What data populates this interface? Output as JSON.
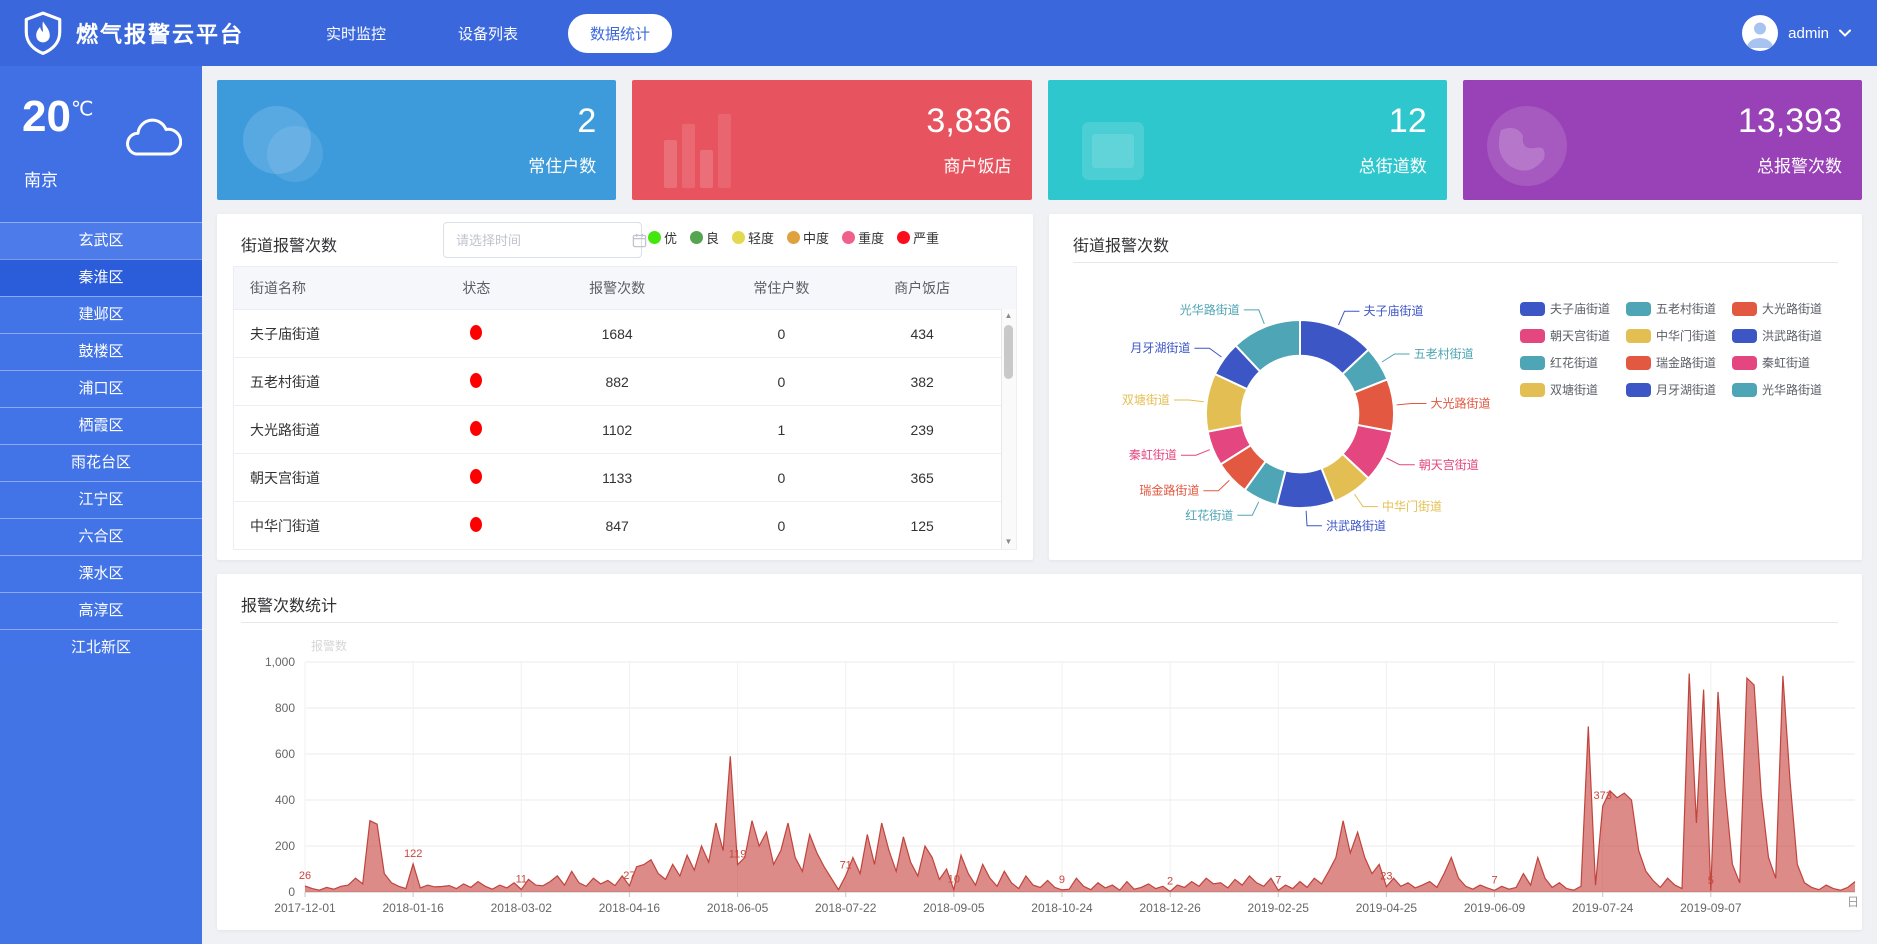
{
  "header": {
    "app_title": "燃气报警云平台",
    "nav_items": [
      {
        "label": "实时监控",
        "active": false
      },
      {
        "label": "设备列表",
        "active": false
      },
      {
        "label": "数据统计",
        "active": true
      }
    ],
    "user_name": "admin"
  },
  "sidebar": {
    "weather": {
      "temperature": "20",
      "unit": "℃",
      "city": "南京"
    },
    "districts": [
      "玄武区",
      "秦淮区",
      "建邺区",
      "鼓楼区",
      "浦口区",
      "栖霞区",
      "雨花台区",
      "江宁区",
      "六合区",
      "溧水区",
      "高淳区",
      "江北新区"
    ],
    "selected_district": "秦淮区"
  },
  "stat_cards": [
    {
      "value": "2",
      "label": "常住户数",
      "color": "#3d9bdc",
      "icon": "moon-icon"
    },
    {
      "value": "3,836",
      "label": "商户饭店",
      "color": "#e7545f",
      "icon": "bar-chart-icon"
    },
    {
      "value": "12",
      "label": "总街道数",
      "color": "#2ec7cd",
      "icon": "device-icon"
    },
    {
      "value": "13,393",
      "label": "总报警次数",
      "color": "#9941b6",
      "icon": "globe-icon"
    }
  ],
  "street_panel": {
    "title": "街道报警次数",
    "date_placeholder": "请选择时间",
    "severity_legend": [
      {
        "label": "优",
        "color": "#43e70e"
      },
      {
        "label": "良",
        "color": "#55a44f"
      },
      {
        "label": "轻度",
        "color": "#e3d94f"
      },
      {
        "label": "中度",
        "color": "#dfa23f"
      },
      {
        "label": "重度",
        "color": "#f0608b"
      },
      {
        "label": "严重",
        "color": "#fb0d1b"
      }
    ],
    "columns": [
      "街道名称",
      "状态",
      "报警次数",
      "常住户数",
      "商户饭店"
    ],
    "status_color": "#ff0000",
    "rows": [
      {
        "name": "夫子庙街道",
        "alarms": "1684",
        "households": "0",
        "merchants": "434"
      },
      {
        "name": "五老村街道",
        "alarms": "882",
        "households": "0",
        "merchants": "382"
      },
      {
        "name": "大光路街道",
        "alarms": "1102",
        "households": "1",
        "merchants": "239"
      },
      {
        "name": "朝天宫街道",
        "alarms": "1133",
        "households": "0",
        "merchants": "365"
      },
      {
        "name": "中华门街道",
        "alarms": "847",
        "households": "0",
        "merchants": "125"
      }
    ]
  },
  "donut_panel": {
    "title": "街道报警次数"
  },
  "trend_panel": {
    "title": "报警次数统计"
  },
  "chart_data": [
    {
      "id": "street-alarm-donut",
      "type": "pie",
      "title": "街道报警次数",
      "legend_position": "top-right",
      "inner_radius_ratio": 0.62,
      "segments": [
        {
          "name": "夫子庙街道",
          "value": 13,
          "color": "#3d56c6"
        },
        {
          "name": "五老村街道",
          "value": 6,
          "color": "#4ea5b5"
        },
        {
          "name": "大光路街道",
          "value": 9,
          "color": "#e25840"
        },
        {
          "name": "朝天宫街道",
          "value": 9,
          "color": "#e4467f"
        },
        {
          "name": "中华门街道",
          "value": 7,
          "color": "#e3bf53"
        },
        {
          "name": "洪武路街道",
          "value": 10,
          "color": "#3d56c6"
        },
        {
          "name": "红花街道",
          "value": 6,
          "color": "#4ea5b5"
        },
        {
          "name": "瑞金路街道",
          "value": 6,
          "color": "#e25840"
        },
        {
          "name": "秦虹街道",
          "value": 6,
          "color": "#e4467f"
        },
        {
          "name": "双塘街道",
          "value": 10,
          "color": "#e3bf53"
        },
        {
          "name": "月牙湖街道",
          "value": 6,
          "color": "#3d56c6"
        },
        {
          "name": "光华路街道",
          "value": 12,
          "color": "#4ea5b5"
        }
      ]
    },
    {
      "id": "alarm-trend",
      "type": "area",
      "title": "报警次数统计",
      "ylabel": "报警数",
      "x_axis_unit": "日",
      "ylim": [
        0,
        1000
      ],
      "yticks": [
        0,
        200,
        400,
        600,
        800,
        1000
      ],
      "ytick_labels": [
        "0",
        "200",
        "400",
        "600",
        "800",
        "1,000"
      ],
      "x_tick_labels": [
        "2017-12-01",
        "2018-01-16",
        "2018-03-02",
        "2018-04-16",
        "2018-06-05",
        "2018-07-22",
        "2018-09-05",
        "2018-10-24",
        "2018-12-26",
        "2019-02-25",
        "2019-04-25",
        "2019-06-09",
        "2019-07-24",
        "2019-09-07"
      ],
      "line_color": "#c0443c",
      "fill_color": "rgba(197,62,56,0.6)",
      "label_color": "#c9463d",
      "grid": true,
      "values": [
        26,
        15,
        8,
        20,
        12,
        25,
        30,
        60,
        35,
        310,
        295,
        80,
        40,
        25,
        15,
        122,
        18,
        30,
        22,
        24,
        28,
        15,
        35,
        20,
        45,
        25,
        12,
        30,
        18,
        40,
        11,
        55,
        30,
        27,
        45,
        70,
        30,
        90,
        40,
        25,
        60,
        35,
        50,
        28,
        70,
        27,
        110,
        119,
        140,
        80,
        55,
        120,
        70,
        160,
        95,
        200,
        130,
        300,
        180,
        590,
        119,
        150,
        310,
        200,
        260,
        120,
        180,
        300,
        150,
        90,
        250,
        170,
        110,
        60,
        10,
        71,
        150,
        80,
        250,
        120,
        300,
        180,
        90,
        240,
        130,
        70,
        200,
        150,
        55,
        100,
        10,
        160,
        80,
        30,
        120,
        60,
        25,
        90,
        40,
        15,
        70,
        30,
        20,
        50,
        20,
        9,
        12,
        60,
        25,
        10,
        40,
        18,
        30,
        8,
        45,
        12,
        20,
        35,
        15,
        25,
        2,
        30,
        20,
        45,
        25,
        60,
        35,
        40,
        18,
        55,
        30,
        70,
        40,
        25,
        60,
        7,
        30,
        15,
        45,
        20,
        60,
        35,
        90,
        150,
        310,
        170,
        260,
        150,
        80,
        120,
        23,
        60,
        25,
        40,
        18,
        30,
        45,
        20,
        80,
        150,
        60,
        25,
        12,
        30,
        18,
        7,
        25,
        12,
        20,
        80,
        30,
        150,
        60,
        20,
        40,
        15,
        8,
        25,
        720,
        30,
        373,
        440,
        410,
        430,
        400,
        180,
        90,
        50,
        20,
        60,
        30,
        15,
        950,
        300,
        880,
        5,
        870,
        440,
        120,
        40,
        930,
        900,
        420,
        150,
        60,
        940,
        480,
        120,
        40,
        20,
        10,
        30,
        15,
        8,
        20,
        45
      ],
      "point_labels": [
        {
          "index": 0,
          "text": "26"
        },
        {
          "index": 15,
          "text": "122"
        },
        {
          "index": 30,
          "text": "11"
        },
        {
          "index": 45,
          "text": "27"
        },
        {
          "index": 60,
          "text": "119"
        },
        {
          "index": 75,
          "text": "71"
        },
        {
          "index": 90,
          "text": "10"
        },
        {
          "index": 105,
          "text": "9"
        },
        {
          "index": 120,
          "text": "2"
        },
        {
          "index": 135,
          "text": "7"
        },
        {
          "index": 150,
          "text": "23"
        },
        {
          "index": 165,
          "text": "7"
        },
        {
          "index": 180,
          "text": "373"
        },
        {
          "index": 195,
          "text": "5"
        }
      ]
    }
  ]
}
